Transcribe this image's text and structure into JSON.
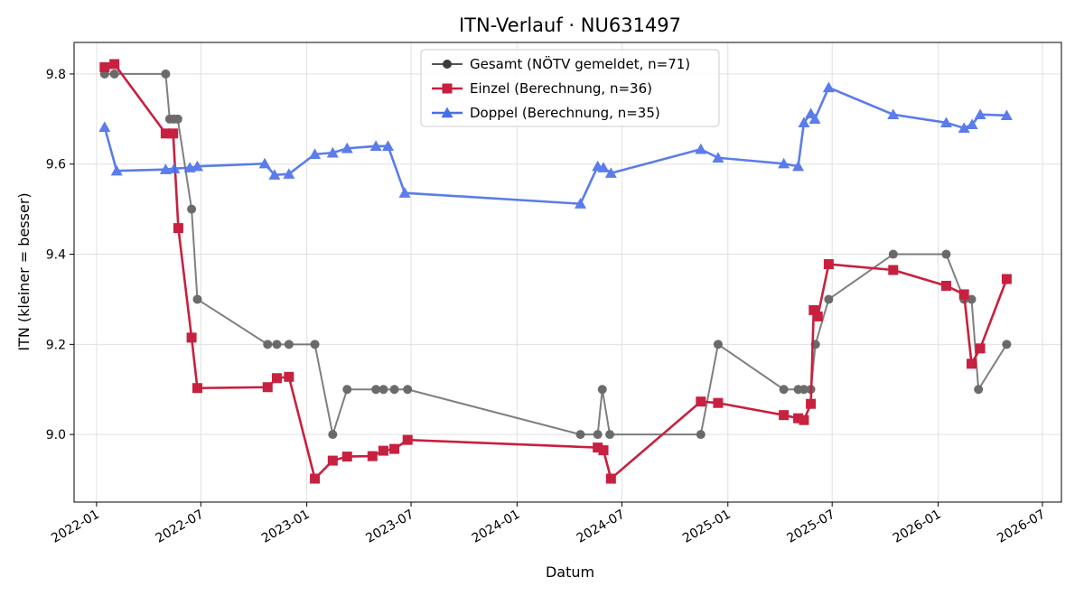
{
  "chart_data": {
    "type": "line",
    "title": "ITN-Verlauf · NU631497",
    "xlabel": "Datum",
    "ylabel": "ITN  (kleiner = besser)",
    "xlim": [
      "2021-11-23",
      "2026-08-03"
    ],
    "ylim": [
      8.85,
      9.87
    ],
    "x_ticks": [
      "2022-01",
      "2022-07",
      "2023-01",
      "2023-07",
      "2024-01",
      "2024-07",
      "2025-01",
      "2025-07",
      "2026-01",
      "2026-07"
    ],
    "y_ticks": [
      9.0,
      9.2,
      9.4,
      9.6,
      9.8
    ],
    "grid": true,
    "legend_position": "top-center",
    "series": [
      {
        "name": "Gesamt (NÖTV gemeldet, n=71)",
        "color": "#555555",
        "marker": "circle",
        "points": [
          [
            "2022-01-15",
            9.8
          ],
          [
            "2022-02-01",
            9.8
          ],
          [
            "2022-05-01",
            9.8
          ],
          [
            "2022-05-08",
            9.7
          ],
          [
            "2022-05-15",
            9.7
          ],
          [
            "2022-05-22",
            9.7
          ],
          [
            "2022-06-15",
            9.5
          ],
          [
            "2022-06-25",
            9.3
          ],
          [
            "2022-10-25",
            9.2
          ],
          [
            "2022-11-10",
            9.2
          ],
          [
            "2022-12-01",
            9.2
          ],
          [
            "2023-01-15",
            9.2
          ],
          [
            "2023-02-15",
            9.0
          ],
          [
            "2023-03-12",
            9.1
          ],
          [
            "2023-05-01",
            9.1
          ],
          [
            "2023-05-14",
            9.1
          ],
          [
            "2023-06-02",
            9.1
          ],
          [
            "2023-06-25",
            9.1
          ],
          [
            "2024-04-20",
            9.0
          ],
          [
            "2024-05-20",
            9.0
          ],
          [
            "2024-05-28",
            9.1
          ],
          [
            "2024-06-10",
            9.0
          ],
          [
            "2024-11-15",
            9.0
          ],
          [
            "2024-12-15",
            9.2
          ],
          [
            "2025-04-08",
            9.1
          ],
          [
            "2025-05-03",
            9.1
          ],
          [
            "2025-05-13",
            9.1
          ],
          [
            "2025-05-25",
            9.1
          ],
          [
            "2025-06-02",
            9.2
          ],
          [
            "2025-06-25",
            9.3
          ],
          [
            "2025-10-15",
            9.4
          ],
          [
            "2026-01-15",
            9.4
          ],
          [
            "2026-02-15",
            9.3
          ],
          [
            "2026-02-28",
            9.3
          ],
          [
            "2026-03-12",
            9.1
          ],
          [
            "2026-04-30",
            9.2
          ]
        ]
      },
      {
        "name": "Einzel (Berechnung, n=36)",
        "color": "#c8203f",
        "marker": "square",
        "points": [
          [
            "2022-01-15",
            9.815
          ],
          [
            "2022-02-01",
            9.822
          ],
          [
            "2022-05-01",
            9.668
          ],
          [
            "2022-05-14",
            9.668
          ],
          [
            "2022-05-23",
            9.458
          ],
          [
            "2022-06-15",
            9.215
          ],
          [
            "2022-06-25",
            9.103
          ],
          [
            "2022-10-25",
            9.105
          ],
          [
            "2022-11-10",
            9.125
          ],
          [
            "2022-12-01",
            9.128
          ],
          [
            "2023-01-15",
            8.902
          ],
          [
            "2023-02-15",
            8.942
          ],
          [
            "2023-03-12",
            8.951
          ],
          [
            "2023-04-25",
            8.952
          ],
          [
            "2023-05-14",
            8.964
          ],
          [
            "2023-06-02",
            8.968
          ],
          [
            "2023-06-25",
            8.988
          ],
          [
            "2024-05-20",
            8.971
          ],
          [
            "2024-05-30",
            8.965
          ],
          [
            "2024-06-12",
            8.902
          ],
          [
            "2024-11-15",
            9.073
          ],
          [
            "2024-12-15",
            9.07
          ],
          [
            "2025-04-08",
            9.043
          ],
          [
            "2025-05-03",
            9.036
          ],
          [
            "2025-05-13",
            9.032
          ],
          [
            "2025-05-25",
            9.068
          ],
          [
            "2025-05-30",
            9.276
          ],
          [
            "2025-06-06",
            9.262
          ],
          [
            "2025-06-25",
            9.378
          ],
          [
            "2025-10-15",
            9.365
          ],
          [
            "2026-01-15",
            9.33
          ],
          [
            "2026-02-15",
            9.311
          ],
          [
            "2026-02-28",
            9.157
          ],
          [
            "2026-03-15",
            9.191
          ],
          [
            "2026-04-30",
            9.345
          ]
        ]
      },
      {
        "name": "Doppel (Berechnung, n=35)",
        "color": "#4a6ee8",
        "marker": "triangle",
        "points": [
          [
            "2022-01-15",
            9.682
          ],
          [
            "2022-02-05",
            9.585
          ],
          [
            "2022-05-01",
            9.588
          ],
          [
            "2022-05-16",
            9.59
          ],
          [
            "2022-06-12",
            9.592
          ],
          [
            "2022-06-25",
            9.595
          ],
          [
            "2022-10-20",
            9.601
          ],
          [
            "2022-11-06",
            9.576
          ],
          [
            "2022-12-01",
            9.578
          ],
          [
            "2023-01-15",
            9.622
          ],
          [
            "2023-02-15",
            9.625
          ],
          [
            "2023-03-12",
            9.635
          ],
          [
            "2023-05-01",
            9.64
          ],
          [
            "2023-05-22",
            9.64
          ],
          [
            "2023-06-20",
            9.536
          ],
          [
            "2024-04-20",
            9.512
          ],
          [
            "2024-05-20",
            9.595
          ],
          [
            "2024-05-30",
            9.592
          ],
          [
            "2024-06-12",
            9.58
          ],
          [
            "2024-11-15",
            9.633
          ],
          [
            "2024-12-15",
            9.614
          ],
          [
            "2025-04-08",
            9.601
          ],
          [
            "2025-05-03",
            9.595
          ],
          [
            "2025-05-13",
            9.692
          ],
          [
            "2025-05-25",
            9.712
          ],
          [
            "2025-06-01",
            9.7
          ],
          [
            "2025-06-25",
            9.77
          ],
          [
            "2025-10-15",
            9.71
          ],
          [
            "2026-01-15",
            9.692
          ],
          [
            "2026-02-15",
            9.68
          ],
          [
            "2026-03-01",
            9.688
          ],
          [
            "2026-03-15",
            9.71
          ],
          [
            "2026-04-30",
            9.708
          ]
        ]
      }
    ]
  }
}
